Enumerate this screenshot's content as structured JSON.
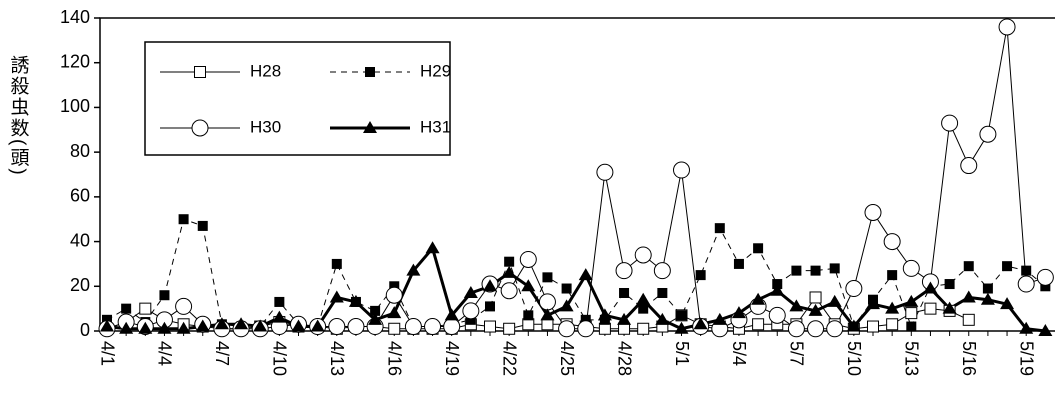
{
  "chart_data": {
    "type": "line",
    "y_label": "誘殺虫数(頭)",
    "categories": [
      "4/1",
      null,
      null,
      "4/4",
      null,
      null,
      "4/7",
      null,
      null,
      "4/10",
      null,
      null,
      "4/13",
      null,
      null,
      "4/16",
      null,
      null,
      "4/19",
      null,
      null,
      "4/22",
      null,
      null,
      "4/25",
      null,
      null,
      "4/28",
      null,
      null,
      "5/1",
      null,
      null,
      "5/4",
      null,
      null,
      "5/7",
      null,
      null,
      "5/10",
      null,
      null,
      "5/13",
      null,
      null,
      "5/16",
      null,
      null,
      "5/19",
      null
    ],
    "ylim": [
      0,
      140
    ],
    "yticks": [
      0,
      20,
      40,
      60,
      80,
      100,
      120,
      140
    ],
    "legend": "upper left",
    "series": [
      {
        "name": "H28",
        "color": "#000000",
        "marker": "square-open",
        "dash": false,
        "width": 1,
        "values": [
          1,
          4,
          10,
          5,
          3,
          2,
          1,
          1,
          2,
          4,
          2,
          2,
          1,
          2,
          2,
          1,
          1,
          1,
          1,
          3,
          2,
          1,
          3,
          3,
          3,
          2,
          1,
          1,
          1,
          2,
          7,
          3,
          2,
          1,
          3,
          3,
          3,
          15,
          3,
          1,
          2,
          3,
          8,
          10,
          9,
          5,
          null,
          null,
          null,
          null
        ]
      },
      {
        "name": "H29",
        "color": "#000000",
        "marker": "square-filled",
        "dash": true,
        "width": 1,
        "values": [
          5,
          10,
          4,
          16,
          50,
          47,
          3,
          2,
          2,
          13,
          3,
          2,
          30,
          13,
          9,
          20,
          2,
          2,
          3,
          5,
          11,
          31,
          7,
          24,
          19,
          5,
          5,
          17,
          10,
          17,
          7,
          25,
          46,
          30,
          37,
          21,
          27,
          27,
          28,
          2,
          14,
          25,
          2,
          20,
          21,
          29,
          19,
          29,
          27,
          20
        ]
      },
      {
        "name": "H30",
        "color": "#000000",
        "marker": "circle-open",
        "dash": false,
        "width": 1,
        "values": [
          1,
          4,
          2,
          5,
          11,
          3,
          1,
          1,
          1,
          2,
          3,
          2,
          2,
          2,
          2,
          16,
          2,
          2,
          2,
          9,
          21,
          18,
          32,
          13,
          1,
          1,
          71,
          27,
          34,
          27,
          72,
          2,
          1,
          5,
          11,
          7,
          1,
          1,
          1,
          19,
          53,
          40,
          28,
          22,
          93,
          74,
          88,
          136,
          21,
          24
        ]
      },
      {
        "name": "H31",
        "color": "#000000",
        "marker": "triangle-filled",
        "dash": false,
        "width": 3,
        "values": [
          2,
          1,
          1,
          1,
          1,
          2,
          3,
          3,
          2,
          6,
          2,
          2,
          15,
          13,
          5,
          8,
          27,
          37,
          7,
          17,
          20,
          26,
          20,
          7,
          11,
          25,
          7,
          5,
          14,
          5,
          1,
          3,
          5,
          8,
          14,
          18,
          11,
          9,
          13,
          2,
          12,
          10,
          13,
          19,
          10,
          15,
          14,
          12,
          1,
          0
        ]
      }
    ]
  }
}
